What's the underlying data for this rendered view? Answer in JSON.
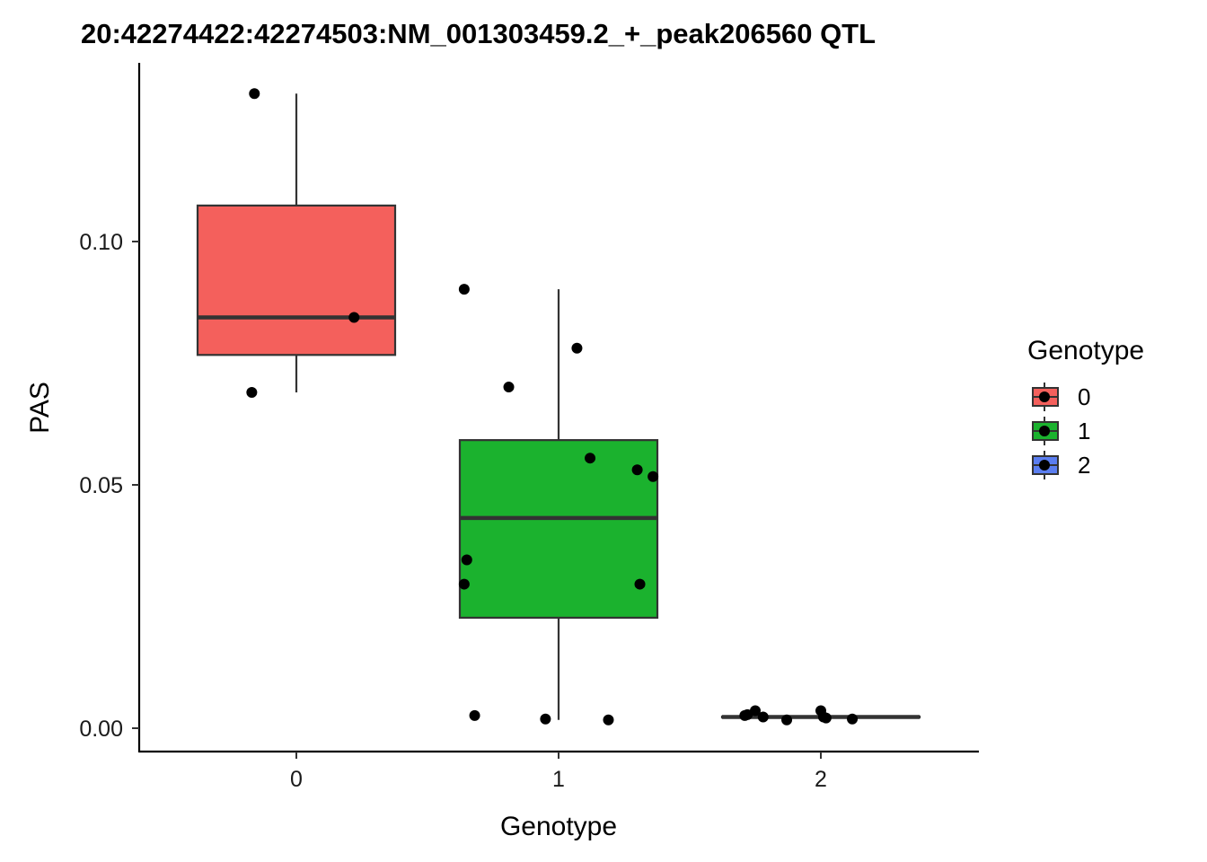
{
  "chart_data": {
    "type": "boxplot",
    "title": "20:42274422:42274503:NM_001303459.2_+_peak206560 QTL",
    "xlabel": "Genotype",
    "ylabel": "PAS",
    "categories": [
      "0",
      "1",
      "2"
    ],
    "y_ticks": [
      0.0,
      0.05,
      0.1
    ],
    "y_tick_labels": [
      "0.00",
      "0.05",
      "0.10"
    ],
    "ylim": [
      -0.0045,
      0.1365
    ],
    "grid": false,
    "legend": {
      "title": "Genotype",
      "placement": "right",
      "entries": [
        "0",
        "1",
        "2"
      ]
    },
    "colors": {
      "0": "#f4605c",
      "1": "#1bb22e",
      "2": "#5b7ef0"
    },
    "boxes": [
      {
        "category": "0",
        "whisker_low": 0.069,
        "q1": 0.0767,
        "median": 0.0844,
        "q3": 0.1074,
        "whisker_high": 0.1304
      },
      {
        "category": "1",
        "whisker_low": 0.0017,
        "q1": 0.0227,
        "median": 0.0432,
        "q3": 0.0592,
        "whisker_high": 0.0902
      },
      {
        "category": "2",
        "whisker_low": 0.0021,
        "q1": 0.0022,
        "median": 0.0023,
        "q3": 0.0024,
        "whisker_high": 0.0025
      }
    ],
    "points": [
      {
        "x": -0.16,
        "y": 0.1304
      },
      {
        "x": 0.22,
        "y": 0.0844
      },
      {
        "x": -0.17,
        "y": 0.069
      },
      {
        "x": 0.64,
        "y": 0.0902
      },
      {
        "x": 1.07,
        "y": 0.0781
      },
      {
        "x": 0.81,
        "y": 0.0701
      },
      {
        "x": 1.12,
        "y": 0.0555
      },
      {
        "x": 1.3,
        "y": 0.0531
      },
      {
        "x": 1.36,
        "y": 0.0517
      },
      {
        "x": 0.65,
        "y": 0.0346
      },
      {
        "x": 0.64,
        "y": 0.0296
      },
      {
        "x": 1.31,
        "y": 0.0296
      },
      {
        "x": 0.68,
        "y": 0.0026
      },
      {
        "x": 0.95,
        "y": 0.0019
      },
      {
        "x": 1.19,
        "y": 0.0017
      },
      {
        "x": 1.71,
        "y": 0.0026
      },
      {
        "x": 1.72,
        "y": 0.0028
      },
      {
        "x": 1.75,
        "y": 0.0036
      },
      {
        "x": 1.78,
        "y": 0.0023
      },
      {
        "x": 1.87,
        "y": 0.0017
      },
      {
        "x": 2.0,
        "y": 0.0036
      },
      {
        "x": 2.01,
        "y": 0.0023
      },
      {
        "x": 2.02,
        "y": 0.0021
      },
      {
        "x": 2.12,
        "y": 0.0019
      }
    ]
  }
}
